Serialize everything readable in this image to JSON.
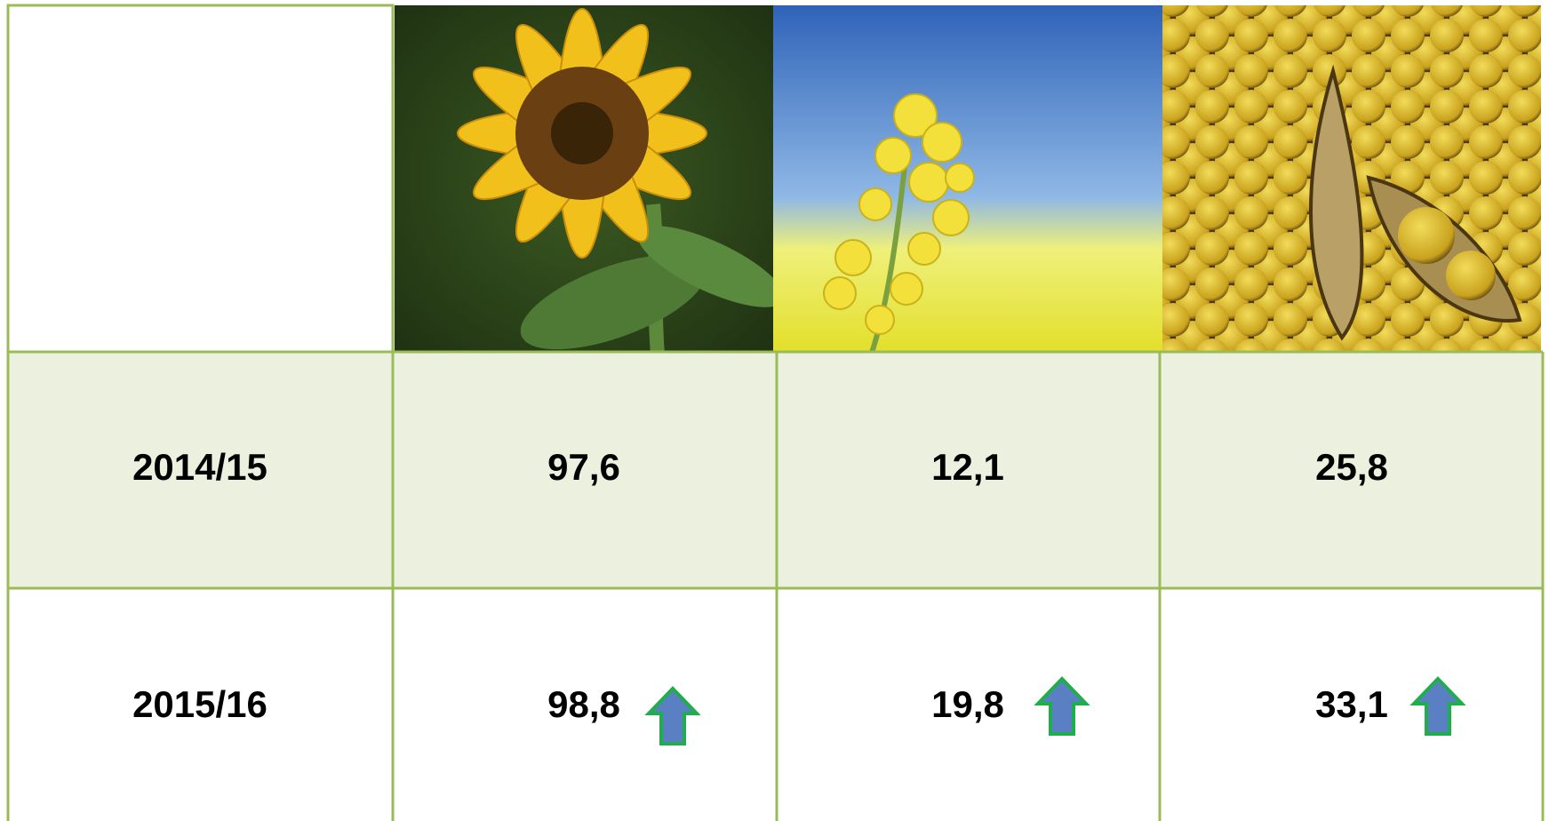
{
  "table": {
    "rows": [
      [
        "2014/15",
        "97,6",
        "12,1",
        "25,8"
      ],
      [
        "2015/16",
        "98,8",
        "19,8",
        "33,1"
      ]
    ]
  }
}
